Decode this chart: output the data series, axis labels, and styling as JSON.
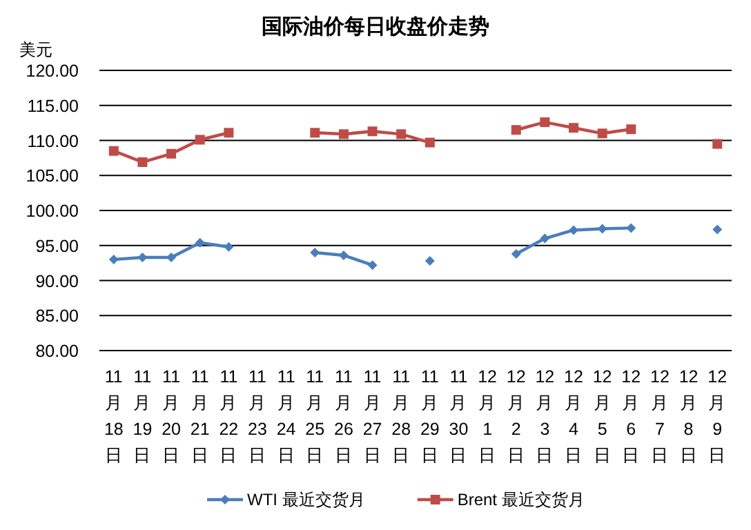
{
  "chart_data": {
    "type": "line",
    "title": "国际油价每日收盘价走势",
    "ylabel": "美元",
    "categories": [
      "11月18日",
      "11月19日",
      "11月20日",
      "11月21日",
      "11月22日",
      "11月23日",
      "11月24日",
      "11月25日",
      "11月26日",
      "11月27日",
      "11月28日",
      "11月29日",
      "11月30日",
      "12月1日",
      "12月2日",
      "12月3日",
      "12月4日",
      "12月5日",
      "12月6日",
      "12月7日",
      "12月8日",
      "12月9日"
    ],
    "series": [
      {
        "name": "WTI 最近交货月",
        "color": "#4a7ebb",
        "marker": "diamond",
        "values": [
          93.0,
          93.3,
          93.3,
          95.4,
          94.8,
          null,
          null,
          94.0,
          93.6,
          92.2,
          null,
          92.8,
          null,
          null,
          93.8,
          96.0,
          97.2,
          97.4,
          97.5,
          null,
          null,
          97.3
        ]
      },
      {
        "name": "Brent 最近交货月",
        "color": "#be4b48",
        "marker": "square",
        "values": [
          108.5,
          106.9,
          108.1,
          110.1,
          111.1,
          null,
          null,
          111.1,
          110.9,
          111.3,
          110.9,
          109.7,
          null,
          null,
          111.5,
          112.6,
          111.8,
          111.0,
          111.6,
          null,
          null,
          109.5
        ]
      }
    ],
    "ylim": [
      80,
      120
    ],
    "yticks": [
      {
        "value": 80,
        "label": "80.00"
      },
      {
        "value": 85,
        "label": "85.00"
      },
      {
        "value": 90,
        "label": "90.00"
      },
      {
        "value": 95,
        "label": "95.00"
      },
      {
        "value": 100,
        "label": "100.00"
      },
      {
        "value": 105,
        "label": "105.00"
      },
      {
        "value": 110,
        "label": "110.00"
      },
      {
        "value": 115,
        "label": "115.00"
      },
      {
        "value": 120,
        "label": "120.00"
      }
    ],
    "grid": "y",
    "legend": "bottom",
    "line_style": "solid"
  }
}
